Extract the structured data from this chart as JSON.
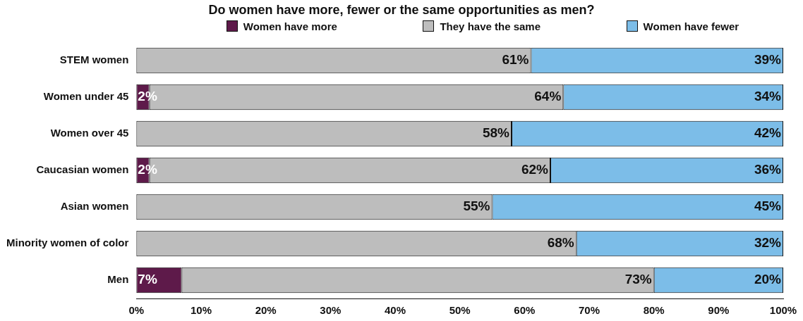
{
  "chart_data": {
    "type": "bar",
    "orientation": "horizontal",
    "stacked": true,
    "title": "Do women have more, fewer or the same opportunities as men?",
    "categories": [
      "STEM women",
      "Women under 45",
      "Women over 45",
      "Caucasian women",
      "Asian women",
      "Minority women of color",
      "Men"
    ],
    "series": [
      {
        "name": "Women have more",
        "color": "#5e1a4a",
        "values": [
          null,
          2,
          null,
          2,
          null,
          null,
          7
        ],
        "value_labels": [
          null,
          "2%",
          null,
          "2%",
          null,
          null,
          "7%"
        ]
      },
      {
        "name": "They have the same",
        "color": "#bdbdbd",
        "values": [
          61,
          64,
          58,
          62,
          55,
          68,
          73
        ],
        "value_labels": [
          "61%",
          "64%",
          "58%",
          "62%",
          "55%",
          "68%",
          "73%"
        ]
      },
      {
        "name": "Women have fewer",
        "color": "#7cbde8",
        "values": [
          39,
          34,
          42,
          36,
          45,
          32,
          20
        ],
        "value_labels": [
          "39%",
          "34%",
          "42%",
          "36%",
          "45%",
          "32%",
          "20%"
        ]
      }
    ],
    "xlim": [
      0,
      100
    ],
    "xticks": [
      {
        "value": 0,
        "label": "0%"
      },
      {
        "value": 10,
        "label": "10%"
      },
      {
        "value": 20,
        "label": "20%"
      },
      {
        "value": 30,
        "label": "30%"
      },
      {
        "value": 40,
        "label": "40%"
      },
      {
        "value": 50,
        "label": "50%"
      },
      {
        "value": 60,
        "label": "60%"
      },
      {
        "value": 70,
        "label": "70%"
      },
      {
        "value": 80,
        "label": "80%"
      },
      {
        "value": 90,
        "label": "90%"
      },
      {
        "value": 100,
        "label": "100%"
      }
    ],
    "legend": "top"
  }
}
